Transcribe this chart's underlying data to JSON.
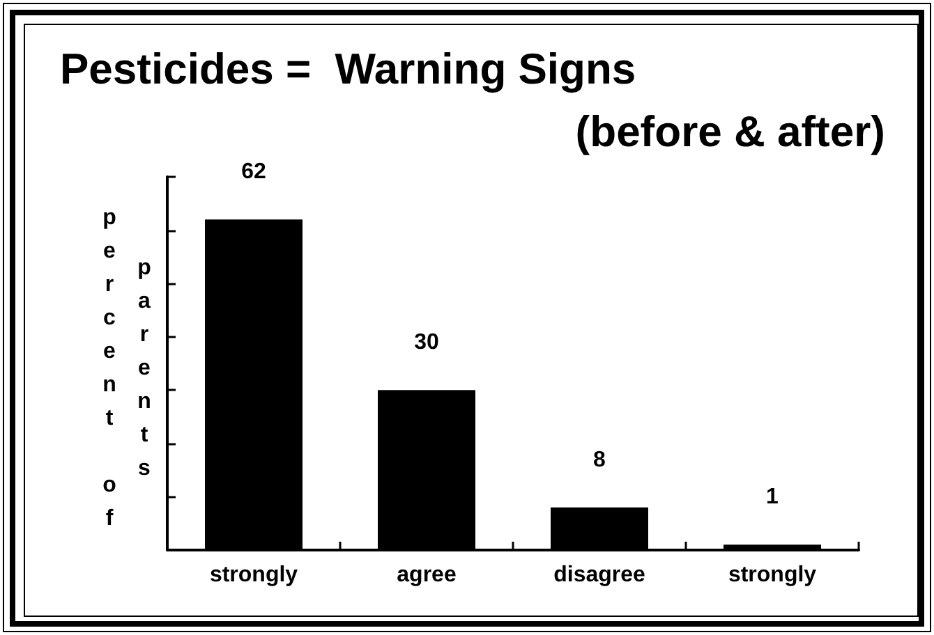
{
  "chart_data": {
    "type": "bar",
    "title": "Pesticides =  Warning Signs",
    "subtitle": "(before & after)",
    "ylabel": "percent of parents",
    "categories": [
      "strongly",
      "agree",
      "disagree",
      "strongly"
    ],
    "values": [
      62,
      30,
      8,
      1
    ],
    "color": "#000000",
    "ylim": [
      0,
      70
    ],
    "yticks": [
      {
        "value": 0,
        "label": null
      },
      {
        "value": 10,
        "label": null
      },
      {
        "value": 20,
        "label": null
      },
      {
        "value": 30,
        "label": null
      },
      {
        "value": 40,
        "label": null
      },
      {
        "value": 50,
        "label": null
      },
      {
        "value": 60,
        "label": null
      },
      {
        "value": 70,
        "label": null
      }
    ],
    "tick_labels": "x",
    "data_labels": true
  }
}
